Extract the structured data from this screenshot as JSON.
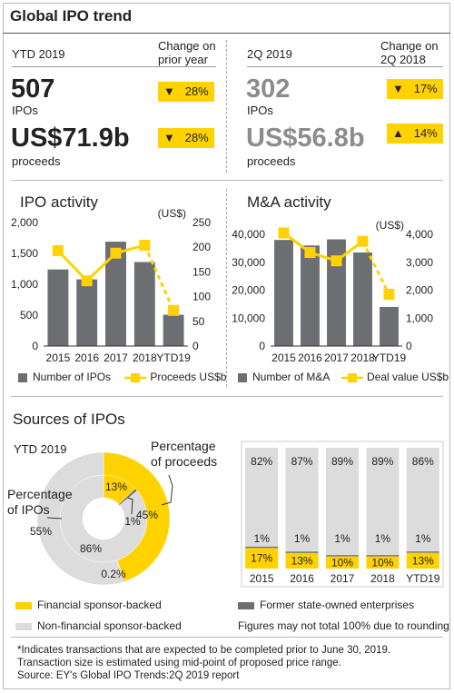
{
  "title": "Global IPO trend",
  "ytd": {
    "header": "YTD 2019",
    "change_header_1": "Change on",
    "change_header_2": "prior year",
    "ipos_value": "507",
    "ipos_label": "IPOs",
    "ipos_change": "28%",
    "ipos_direction": "down",
    "proceeds_value": "US$71.9b",
    "proceeds_label": "proceeds",
    "proceeds_change": "28%",
    "proceeds_direction": "down"
  },
  "q2": {
    "header": "2Q 2019",
    "change_header_1": "Change on",
    "change_header_2": "2Q 2018",
    "ipos_value": "302",
    "ipos_label": "IPOs",
    "ipos_change": "17%",
    "ipos_direction": "down",
    "proceeds_value": "US$56.8b",
    "proceeds_label": "proceeds",
    "proceeds_change": "14%",
    "proceeds_direction": "up"
  },
  "arrows": {
    "down": "▼",
    "up": "▲"
  },
  "colors": {
    "accent": "#ffd200",
    "bar": "#6d6e71",
    "light": "#dcdcdc"
  },
  "chart_data": [
    {
      "type": "bar",
      "title": "IPO activity",
      "categories": [
        "2015",
        "2016",
        "2017",
        "2018",
        "YTD19"
      ],
      "series": [
        {
          "name": "Number of IPOs",
          "kind": "bar",
          "axis": "left",
          "values": [
            1240,
            1080,
            1690,
            1360,
            507
          ]
        },
        {
          "name": "Proceeds US$b",
          "kind": "line",
          "axis": "right",
          "values": [
            193,
            132,
            188,
            204,
            72
          ],
          "dashed_last_segment": true
        }
      ],
      "left_axis": {
        "ticks": [
          "0",
          "500",
          "1,000",
          "1,500",
          "2,000"
        ],
        "max": 2000
      },
      "right_axis": {
        "ticks": [
          "0",
          "50",
          "100",
          "150",
          "200",
          "250"
        ],
        "max": 250,
        "unit": "(US$)"
      }
    },
    {
      "type": "bar",
      "title": "M&A activity",
      "categories": [
        "2015",
        "2016",
        "2017",
        "2018",
        "YTD19"
      ],
      "series": [
        {
          "name": "Number of M&A",
          "kind": "bar",
          "axis": "left",
          "values": [
            38000,
            36000,
            38200,
            33500,
            14000
          ]
        },
        {
          "name": "Deal value US$b",
          "kind": "line",
          "axis": "right",
          "values": [
            4050,
            3350,
            3050,
            3750,
            1850
          ],
          "dashed_last_segment": true
        }
      ],
      "left_axis": {
        "ticks": [
          "0",
          "10,000",
          "20,000",
          "30,000",
          "40,000"
        ],
        "max": 40000
      },
      "right_axis": {
        "ticks": [
          "0",
          "1,000",
          "2,000",
          "3,000",
          "4,000"
        ],
        "max": 4000,
        "unit": "(US$)"
      }
    },
    {
      "type": "pie",
      "title": "Sources of IPOs",
      "subtitle": "YTD 2019",
      "outer_ring": {
        "label_1": "Percentage",
        "label_2": "of proceeds",
        "values": [
          45,
          0.2,
          55
        ],
        "labels": [
          "45%",
          "0.2%",
          "55%"
        ]
      },
      "inner_ring": {
        "label_1": "Percentage",
        "label_2": "of IPOs",
        "values": [
          13,
          1,
          86
        ],
        "labels": [
          "13%",
          "1%",
          "86%"
        ]
      }
    },
    {
      "type": "bar",
      "stacked": true,
      "categories": [
        "2015",
        "2016",
        "2017",
        "2018",
        "YTD19"
      ],
      "series": [
        {
          "name": "Financial sponsor-backed",
          "values": [
            17,
            13,
            10,
            10,
            13
          ],
          "labels": [
            "17%",
            "13%",
            "10%",
            "10%",
            "13%"
          ]
        },
        {
          "name": "Former state-owned enterprises",
          "values": [
            1,
            1,
            1,
            1,
            1
          ],
          "labels": [
            "1%",
            "1%",
            "1%",
            "1%",
            "1%"
          ]
        },
        {
          "name": "Non-financial sponsor-backed",
          "values": [
            82,
            87,
            89,
            89,
            86
          ],
          "labels": [
            "82%",
            "87%",
            "89%",
            "89%",
            "86%"
          ]
        }
      ]
    }
  ],
  "legend": {
    "financial": "Financial sponsor-backed",
    "state": "Former state-owned enterprises",
    "nonfinancial": "Non-financial sponsor-backed",
    "rounding": "Figures may not total 100% due to rounding"
  },
  "footnote": {
    "line1": "*Indicates transactions that are expected to be completed prior to June 30, 2019.",
    "line2": "Transaction size is estimated using mid-point of proposed price range.",
    "source": "Source: EY's Global IPO Trends:2Q 2019 report"
  }
}
